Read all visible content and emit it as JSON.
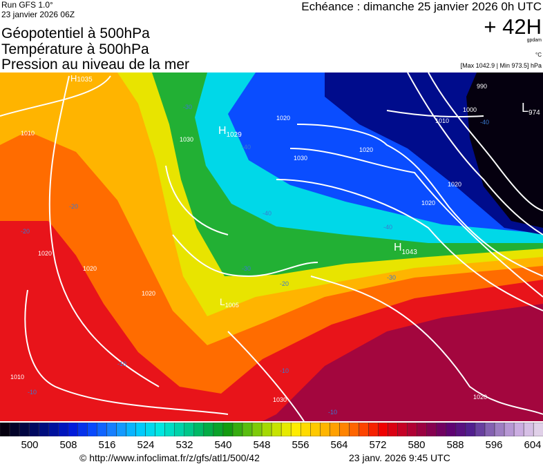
{
  "header": {
    "run": "Run GFS 1.0°",
    "run_date": "23 janvier 2026 06Z",
    "titles": [
      "Géopotentiel à 500hPa",
      "Température à 500hPa",
      "Pression au niveau de la mer"
    ],
    "valid_time": "Echéance : dimanche 25 janvier 2026 0h UTC",
    "lead": "+ 42H",
    "unit_geopot": "gpdam",
    "unit_temp": "°C",
    "pressure_range": "[Max 1042.9 | Min 973.5] hPa"
  },
  "map": {
    "pressure_centers": [
      {
        "type": "H",
        "value": "1035"
      },
      {
        "type": "H",
        "value": "1029"
      },
      {
        "type": "H",
        "value": "1043"
      },
      {
        "type": "L",
        "value": "974"
      },
      {
        "type": "L",
        "value": "1005"
      }
    ],
    "isobar_labels": [
      "1010",
      "1020",
      "1030",
      "1020",
      "1010",
      "990",
      "1000",
      "1020",
      "1030",
      "1020",
      "1020",
      "1020",
      "1010",
      "1020",
      "1030",
      "1020"
    ],
    "temp_labels": [
      "-30",
      "-40",
      "-40",
      "-40",
      "-30",
      "-20",
      "-20",
      "-20",
      "-10",
      "-10",
      "-10",
      "-10",
      "-40",
      "-30"
    ],
    "colors": {
      "black": "#05000f",
      "navy": "#000c8c",
      "blue": "#0a4dff",
      "cyan": "#00d8e8",
      "green": "#22b034",
      "yellow": "#e8e400",
      "gold": "#ffb400",
      "orange": "#ff6c00",
      "red": "#e8141a",
      "crimson": "#a3063e"
    }
  },
  "colorbar": {
    "unit": "gpdam",
    "ticks": [
      "500",
      "508",
      "516",
      "524",
      "532",
      "540",
      "548",
      "556",
      "564",
      "572",
      "580",
      "588",
      "596",
      "604"
    ],
    "stops": [
      "#05000f",
      "#00064a",
      "#000f90",
      "#0018d8",
      "#0a4dff",
      "#1a8cff",
      "#00c8ff",
      "#00e8e0",
      "#00d0a0",
      "#00b050",
      "#109a10",
      "#60c010",
      "#b8e000",
      "#fff000",
      "#ffc800",
      "#ff9800",
      "#ff5000",
      "#f00000",
      "#c0002a",
      "#900048",
      "#600070",
      "#502090",
      "#9070b8",
      "#c8a8e0",
      "#e0d0e8"
    ]
  },
  "footer": {
    "source": "© http://www.infoclimat.fr/z/gfs/atl1/500/42",
    "generated": "23 janv. 2026  9:45 UTC"
  }
}
